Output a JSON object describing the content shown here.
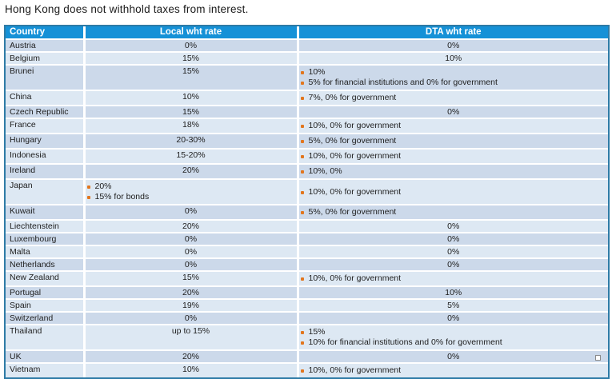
{
  "title": "Hong Kong does not withhold taxes from interest.",
  "colors": {
    "header_bg": "#1591d7",
    "row_dark": "#ccd9ea",
    "row_light": "#dde8f3",
    "table_border": "#2e7ba6",
    "bullet": "#e2761e",
    "header_text": "#ffffff",
    "cell_text": "#1e1e1e"
  },
  "table": {
    "columns": [
      {
        "label": "Country"
      },
      {
        "label": "Local wht rate"
      },
      {
        "label": "DTA wht rate"
      }
    ],
    "rows": [
      {
        "country": "Austria",
        "local": {
          "text": "0%"
        },
        "dta": {
          "text": "0%"
        }
      },
      {
        "country": "Belgium",
        "local": {
          "text": "15%"
        },
        "dta": {
          "text": "10%"
        }
      },
      {
        "country": "Brunei",
        "local": {
          "text": "15%"
        },
        "dta": {
          "bullets": [
            "10%",
            "5% for financial institutions and 0% for government"
          ]
        }
      },
      {
        "country": "China",
        "local": {
          "text": "10%"
        },
        "dta": {
          "bullets": [
            "7%, 0% for government"
          ]
        }
      },
      {
        "country": "Czech Republic",
        "local": {
          "text": "15%"
        },
        "dta": {
          "text": "0%"
        }
      },
      {
        "country": "France",
        "local": {
          "text": "18%"
        },
        "dta": {
          "bullets": [
            "10%, 0% for government"
          ]
        }
      },
      {
        "country": "Hungary",
        "local": {
          "text": "20-30%"
        },
        "dta": {
          "bullets": [
            "5%, 0% for government"
          ]
        }
      },
      {
        "country": "Indonesia",
        "local": {
          "text": "15-20%"
        },
        "dta": {
          "bullets": [
            "10%, 0% for government"
          ]
        }
      },
      {
        "country": "Ireland",
        "local": {
          "text": "20%"
        },
        "dta": {
          "bullets": [
            "10%, 0%"
          ]
        }
      },
      {
        "country": "Japan",
        "local": {
          "bullets": [
            "20%",
            "15% for bonds"
          ]
        },
        "dta": {
          "bullets": [
            "10%, 0% for government"
          ]
        }
      },
      {
        "country": "Kuwait",
        "local": {
          "text": "0%"
        },
        "dta": {
          "bullets": [
            "5%, 0% for government"
          ]
        }
      },
      {
        "country": "Liechtenstein",
        "local": {
          "text": "20%"
        },
        "dta": {
          "text": "0%"
        }
      },
      {
        "country": "Luxembourg",
        "local": {
          "text": "0%"
        },
        "dta": {
          "text": "0%"
        }
      },
      {
        "country": "Malta",
        "local": {
          "text": "0%"
        },
        "dta": {
          "text": "0%"
        }
      },
      {
        "country": "Netherlands",
        "local": {
          "text": "0%"
        },
        "dta": {
          "text": "0%"
        }
      },
      {
        "country": "New Zealand",
        "local": {
          "text": "15%"
        },
        "dta": {
          "bullets": [
            "10%, 0% for government"
          ]
        }
      },
      {
        "country": "Portugal",
        "local": {
          "text": "20%"
        },
        "dta": {
          "text": "10%"
        }
      },
      {
        "country": "Spain",
        "local": {
          "text": "19%"
        },
        "dta": {
          "text": "5%"
        }
      },
      {
        "country": "Switzerland",
        "local": {
          "text": "0%"
        },
        "dta": {
          "text": "0%"
        }
      },
      {
        "country": "Thailand",
        "local": {
          "text": "up to 15%"
        },
        "dta": {
          "bullets": [
            "15%",
            "10% for financial institutions and 0% for government"
          ]
        }
      },
      {
        "country": "UK",
        "local": {
          "text": "20%"
        },
        "dta": {
          "text": "0%"
        }
      },
      {
        "country": "Vietnam",
        "local": {
          "text": "10%"
        },
        "dta": {
          "bullets": [
            "10%,  0% for government"
          ]
        }
      }
    ]
  }
}
